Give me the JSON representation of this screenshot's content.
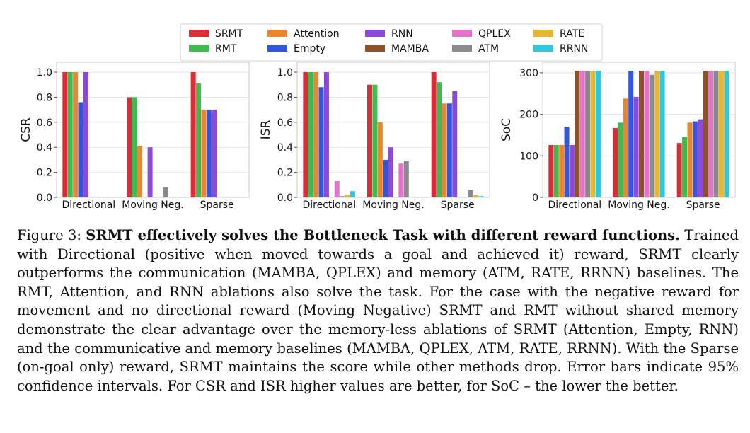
{
  "legend": [
    {
      "name": "SRMT",
      "color": "#d62f37"
    },
    {
      "name": "Attention",
      "color": "#e8872f"
    },
    {
      "name": "RNN",
      "color": "#8c4ad9"
    },
    {
      "name": "QPLEX",
      "color": "#e473cc"
    },
    {
      "name": "RATE",
      "color": "#e6b734"
    },
    {
      "name": "RMT",
      "color": "#3dbb4e"
    },
    {
      "name": "Empty",
      "color": "#3455dd"
    },
    {
      "name": "MAMBA",
      "color": "#8e5128"
    },
    {
      "name": "ATM",
      "color": "#8a8a8a"
    },
    {
      "name": "RRNN",
      "color": "#2ec7e0"
    }
  ],
  "chart_data": [
    {
      "type": "bar",
      "ylabel": "CSR",
      "categories": [
        "Directional",
        "Moving Neg.",
        "Sparse"
      ],
      "ylim": [
        0,
        1.0
      ],
      "yticks": [
        "0.0",
        "0.2",
        "0.4",
        "0.6",
        "0.8",
        "1.0"
      ],
      "grid": true,
      "series": [
        {
          "name": "SRMT",
          "values": [
            1.0,
            0.8,
            1.0
          ]
        },
        {
          "name": "RMT",
          "values": [
            1.0,
            0.8,
            0.91
          ]
        },
        {
          "name": "Attention",
          "values": [
            1.0,
            0.41,
            0.7
          ]
        },
        {
          "name": "Empty",
          "values": [
            0.76,
            0.0,
            0.7
          ]
        },
        {
          "name": "RNN",
          "values": [
            1.0,
            0.4,
            0.7
          ]
        },
        {
          "name": "MAMBA",
          "values": [
            0,
            0,
            0
          ]
        },
        {
          "name": "QPLEX",
          "values": [
            0,
            0,
            0
          ]
        },
        {
          "name": "ATM",
          "values": [
            0,
            0.08,
            0
          ]
        },
        {
          "name": "RATE",
          "values": [
            0,
            0,
            0
          ]
        },
        {
          "name": "RRNN",
          "values": [
            0,
            0,
            0
          ]
        }
      ]
    },
    {
      "type": "bar",
      "ylabel": "ISR",
      "categories": [
        "Directional",
        "Moving Neg.",
        "Sparse"
      ],
      "ylim": [
        0,
        1.0
      ],
      "yticks": [
        "0.0",
        "0.2",
        "0.4",
        "0.6",
        "0.8",
        "1.0"
      ],
      "grid": true,
      "series": [
        {
          "name": "SRMT",
          "values": [
            1.0,
            0.9,
            1.0
          ]
        },
        {
          "name": "RMT",
          "values": [
            1.0,
            0.9,
            0.92
          ]
        },
        {
          "name": "Attention",
          "values": [
            1.0,
            0.6,
            0.75
          ]
        },
        {
          "name": "Empty",
          "values": [
            0.88,
            0.3,
            0.75
          ]
        },
        {
          "name": "RNN",
          "values": [
            1.0,
            0.4,
            0.85
          ]
        },
        {
          "name": "MAMBA",
          "values": [
            0,
            0,
            0
          ]
        },
        {
          "name": "QPLEX",
          "values": [
            0.13,
            0.27,
            0
          ]
        },
        {
          "name": "ATM",
          "values": [
            0.01,
            0.29,
            0.06
          ]
        },
        {
          "name": "RATE",
          "values": [
            0.02,
            0,
            0.02
          ]
        },
        {
          "name": "RRNN",
          "values": [
            0.05,
            0,
            0.01
          ]
        }
      ]
    },
    {
      "type": "bar",
      "ylabel": "SoC",
      "categories": [
        "Directional",
        "Moving Neg.",
        "Sparse"
      ],
      "ylim": [
        0,
        310
      ],
      "yticks": [
        "0",
        "100",
        "200",
        "300"
      ],
      "grid": true,
      "series": [
        {
          "name": "SRMT",
          "values": [
            126,
            167,
            131
          ]
        },
        {
          "name": "RMT",
          "values": [
            126,
            180,
            145
          ]
        },
        {
          "name": "Attention",
          "values": [
            126,
            238,
            180
          ]
        },
        {
          "name": "Empty",
          "values": [
            170,
            305,
            183
          ]
        },
        {
          "name": "RNN",
          "values": [
            126,
            242,
            188
          ]
        },
        {
          "name": "MAMBA",
          "values": [
            305,
            305,
            305
          ]
        },
        {
          "name": "QPLEX",
          "values": [
            305,
            305,
            305
          ]
        },
        {
          "name": "ATM",
          "values": [
            305,
            295,
            305
          ]
        },
        {
          "name": "RATE",
          "values": [
            305,
            305,
            305
          ]
        },
        {
          "name": "RRNN",
          "values": [
            305,
            305,
            305
          ]
        }
      ]
    }
  ],
  "caption": {
    "prefix": "Figure 3: ",
    "bold": "SRMT effectively solves the Bottleneck Task with different reward functions.",
    "body": " Trained with Directional (positive when moved towards a goal and achieved it) reward, SRMT clearly outperforms the communication (MAMBA, QPLEX) and memory (ATM, RATE, RRNN) baselines. The RMT, Attention, and RNN ablations also solve the task. For the case with the negative reward for movement and no directional reward (Moving Negative) SRMT and RMT without shared memory demonstrate the clear advantage over the memory-less ablations of SRMT (Attention, Empty, RNN) and the communicative and memory baselines (MAMBA, QPLEX, ATM, RATE, RRNN). With the Sparse (on-goal only) reward, SRMT maintains the score while other methods drop. Error bars indicate 95% confidence intervals. For CSR and ISR higher values are better, for SoC – the lower the better."
  }
}
